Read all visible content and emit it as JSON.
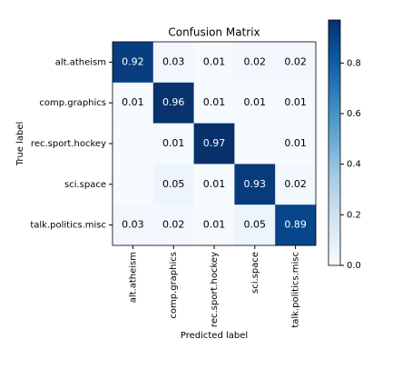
{
  "chart_data": {
    "type": "heatmap",
    "title": "Confusion Matrix",
    "x_label": "Predicted label",
    "y_label": "True label",
    "x_categories": [
      "alt.atheism",
      "comp.graphics",
      "rec.sport.hockey",
      "sci.space",
      "talk.politics.misc"
    ],
    "y_categories": [
      "alt.atheism",
      "comp.graphics",
      "rec.sport.hockey",
      "sci.space",
      "talk.politics.misc"
    ],
    "values": [
      [
        0.92,
        0.03,
        0.01,
        0.02,
        0.02
      ],
      [
        0.01,
        0.96,
        0.01,
        0.01,
        0.01
      ],
      [
        null,
        0.01,
        0.97,
        null,
        0.01
      ],
      [
        null,
        0.05,
        0.01,
        0.93,
        0.02
      ],
      [
        0.03,
        0.02,
        0.01,
        0.05,
        0.89
      ]
    ],
    "colormap": "Blues",
    "zlim": [
      0,
      0.97
    ],
    "zticks": [
      {
        "value": 0,
        "label": "0.0"
      },
      0.2,
      0.4,
      0.6,
      0.8
    ]
  }
}
